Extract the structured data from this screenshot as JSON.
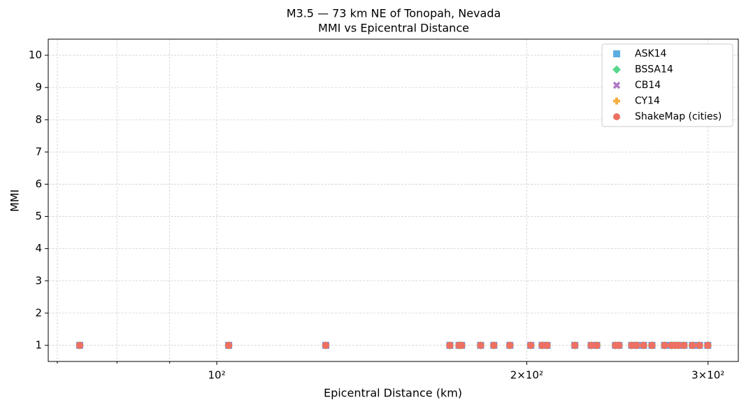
{
  "chart_data": {
    "type": "scatter",
    "title": "M3.5 — 73 km NE of Tonopah, Nevada",
    "subtitle": "MMI vs Epicentral Distance",
    "x_label": "Epicentral Distance (km)",
    "y_label": "MMI",
    "x_scale": "log",
    "xlim": [
      68.6,
      321
    ],
    "ylim": [
      0.5,
      10.5
    ],
    "xticks": [
      {
        "value": 100,
        "label": "10²"
      },
      {
        "value": 200,
        "label": "2×10²"
      },
      {
        "value": 300,
        "label": "3×10²"
      }
    ],
    "xminorticks": [
      70,
      80,
      90
    ],
    "yticks": [
      1,
      2,
      3,
      4,
      5,
      6,
      7,
      8,
      9,
      10
    ],
    "grid": true,
    "legend": "upper right",
    "x": [
      73.6,
      102.7,
      127.6,
      168.4,
      171.9,
      172.9,
      180.4,
      185.8,
      192.6,
      201.8,
      207.0,
      209.3,
      222.7,
      231.0,
      233.9,
      243.9,
      245.8,
      252.9,
      255.6,
      259.7,
      264.6,
      272.2,
      276.5,
      278.6,
      280.8,
      284.3,
      289.7,
      294.3,
      299.8
    ],
    "series": [
      {
        "name": "ASK14",
        "color": "#5dade2",
        "marker": "square",
        "values": [
          1,
          1,
          1,
          1,
          1,
          1,
          1,
          1,
          1,
          1,
          1,
          1,
          1,
          1,
          1,
          1,
          1,
          1,
          1,
          1,
          1,
          1,
          1,
          1,
          1,
          1,
          1,
          1,
          1
        ]
      },
      {
        "name": "BSSA14",
        "color": "#58d68d",
        "marker": "diamond",
        "values": [
          1,
          1,
          1,
          1,
          1,
          1,
          1,
          1,
          1,
          1,
          1,
          1,
          1,
          1,
          1,
          1,
          1,
          1,
          1,
          1,
          1,
          1,
          1,
          1,
          1,
          1,
          1,
          1,
          1
        ]
      },
      {
        "name": "CB14",
        "color": "#af7ac5",
        "marker": "x",
        "values": [
          1,
          1,
          1,
          1,
          1,
          1,
          1,
          1,
          1,
          1,
          1,
          1,
          1,
          1,
          1,
          1,
          1,
          1,
          1,
          1,
          1,
          1,
          1,
          1,
          1,
          1,
          1,
          1,
          1
        ]
      },
      {
        "name": "CY14",
        "color": "#f5b041",
        "marker": "plus",
        "values": [
          1,
          1,
          1,
          1,
          1,
          1,
          1,
          1,
          1,
          1,
          1,
          1,
          1,
          1,
          1,
          1,
          1,
          1,
          1,
          1,
          1,
          1,
          1,
          1,
          1,
          1,
          1,
          1,
          1
        ]
      },
      {
        "name": "ShakeMap (cities)",
        "color": "#ec7063",
        "marker": "circle",
        "values": [
          1,
          1,
          1,
          1,
          1,
          1,
          1,
          1,
          1,
          1,
          1,
          1,
          1,
          1,
          1,
          1,
          1,
          1,
          1,
          1,
          1,
          1,
          1,
          1,
          1,
          1,
          1,
          1,
          1
        ]
      }
    ]
  }
}
